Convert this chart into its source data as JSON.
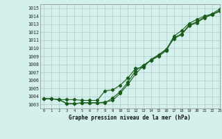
{
  "title": "Graphe pression niveau de la mer (hPa)",
  "bg_color": "#d4f0ec",
  "grid_color": "#b0c8c4",
  "line_color": "#1a5c1a",
  "xlim": [
    -0.5,
    23
  ],
  "ylim": [
    1002.5,
    1015.5
  ],
  "yticks": [
    1003,
    1004,
    1005,
    1006,
    1007,
    1008,
    1009,
    1010,
    1011,
    1012,
    1013,
    1014,
    1015
  ],
  "xticks": [
    0,
    1,
    2,
    3,
    4,
    5,
    6,
    7,
    8,
    9,
    10,
    11,
    12,
    13,
    14,
    15,
    16,
    17,
    18,
    19,
    20,
    21,
    22,
    23
  ],
  "line1": [
    1003.7,
    1003.7,
    1003.6,
    1003.6,
    1003.6,
    1003.5,
    1003.5,
    1003.5,
    1004.7,
    1004.8,
    1005.4,
    1006.3,
    1007.5,
    1007.6,
    1008.6,
    1009.2,
    1009.9,
    1011.2,
    1011.7,
    1012.8,
    1013.2,
    1013.8,
    1014.2,
    1014.6
  ],
  "line2": [
    1003.7,
    1003.7,
    1003.6,
    1003.1,
    1003.1,
    1003.2,
    1003.2,
    1003.2,
    1003.3,
    1003.5,
    1004.4,
    1005.5,
    1006.8,
    1007.8,
    1008.5,
    1009.1,
    1009.8,
    1011.5,
    1012.2,
    1013.1,
    1013.6,
    1014.0,
    1014.3,
    1014.9
  ],
  "line3": [
    1003.7,
    1003.7,
    1003.6,
    1003.1,
    1003.1,
    1003.2,
    1003.2,
    1003.2,
    1003.2,
    1003.8,
    1004.6,
    1005.8,
    1007.2,
    1007.9,
    1008.5,
    1009.0,
    1009.7,
    1011.3,
    1011.8,
    1012.9,
    1013.3,
    1013.9,
    1014.2,
    1014.7
  ]
}
